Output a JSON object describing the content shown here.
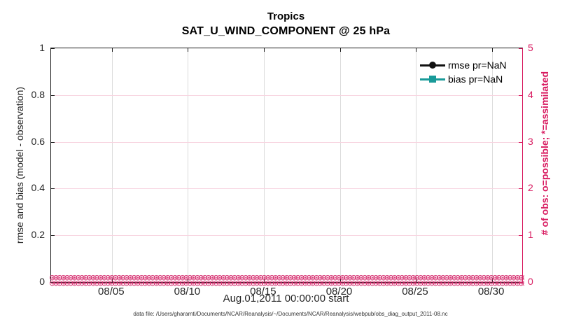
{
  "title": {
    "line1": "Tropics",
    "line2": "SAT_U_WIND_COMPONENT @ 25 hPa"
  },
  "caption": "data file: /Users/gharamti/Documents/NCAR/Reanalysis/~/Documents/NCAR/Reanalysis/webpub/obs_diag_output_2011-08.nc",
  "chart_data": {
    "type": "line",
    "title": "Tropics",
    "subtitle": "SAT_U_WIND_COMPONENT @ 25 hPa",
    "x_axis": {
      "label": "Aug.01,2011 00:00:00 start",
      "span_days": 31,
      "tick_days": [
        4,
        9,
        14,
        19,
        24,
        29
      ],
      "tick_labels": [
        "08/05",
        "08/10",
        "08/15",
        "08/20",
        "08/25",
        "08/30"
      ]
    },
    "left_axis": {
      "label": "rmse and bias (model - observation)",
      "min": 0,
      "max": 1,
      "tick_values": [
        0,
        0.2,
        0.4,
        0.6,
        0.8,
        1
      ],
      "tick_labels": [
        "0",
        "0.2",
        "0.4",
        "0.6",
        "0.8",
        "1"
      ],
      "color": "#262626"
    },
    "right_axis": {
      "label": "# of obs: o=possible; *=assimilated",
      "min": 0,
      "max": 5,
      "tick_values": [
        0,
        1,
        2,
        3,
        4,
        5
      ],
      "tick_labels": [
        "0",
        "1",
        "2",
        "3",
        "4",
        "5"
      ],
      "color": "#d81b60"
    },
    "series": [
      {
        "name": "rmse pr=NaN",
        "color": "#111111",
        "marker": "circle",
        "values": null,
        "note": "all values NaN, no curve drawn"
      },
      {
        "name": "bias pr=NaN",
        "color": "#199a99",
        "marker": "square",
        "values": null,
        "note": "all values NaN, no curve drawn"
      }
    ],
    "obs_band": {
      "description": "observation counts plotted on right axis: o=possible and *=assimilated, all equal 0 across every time bin",
      "value": 0,
      "glyph": "⊛",
      "marker_count": 135,
      "rows": 2,
      "color": "#d4276a"
    },
    "grid": {
      "horizontal_color": "#f7d4e0",
      "vertical_color": "#dbdbdb",
      "horizontal_at_left_values": [
        0.2,
        0.4,
        0.6,
        0.8
      ]
    },
    "legend_position": "top-right-inside, no box"
  }
}
